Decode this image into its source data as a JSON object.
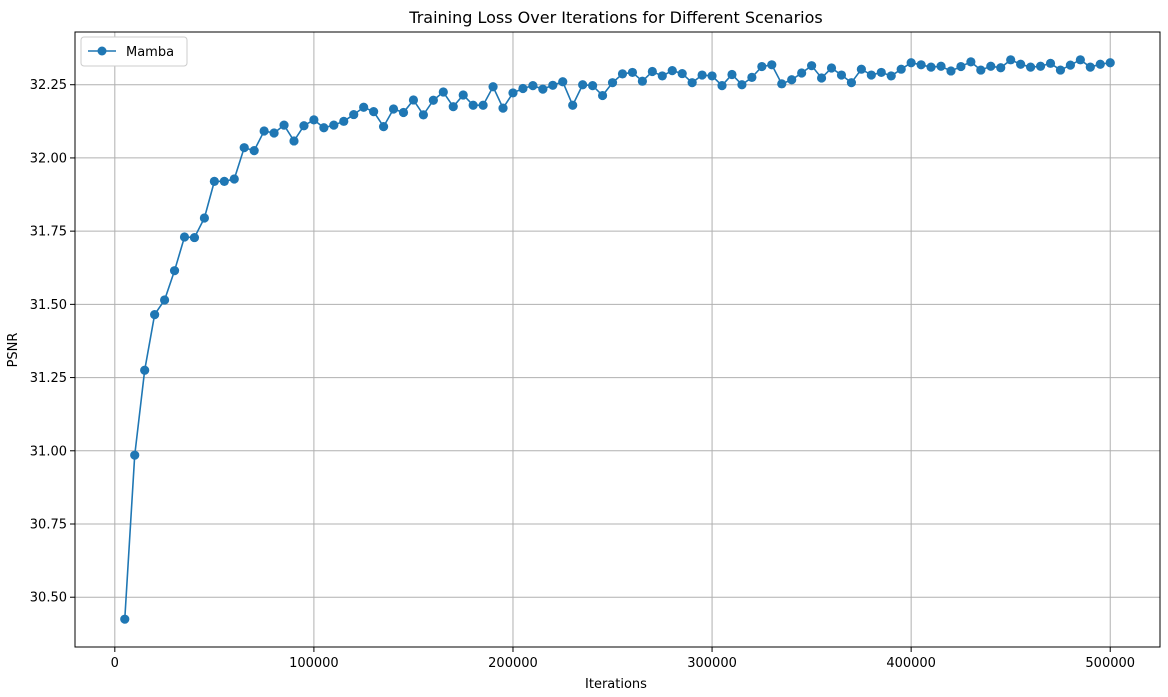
{
  "chart_data": {
    "type": "line",
    "title": "Training Loss Over Iterations for Different Scenarios",
    "xlabel": "Iterations",
    "ylabel": "PSNR",
    "xlim": [
      -20000,
      525000
    ],
    "ylim": [
      30.33,
      32.43
    ],
    "xticks": [
      0,
      100000,
      200000,
      300000,
      400000,
      500000
    ],
    "yticks": [
      30.5,
      30.75,
      31.0,
      31.25,
      31.5,
      31.75,
      32.0,
      32.25
    ],
    "xtick_labels": [
      "0",
      "100000",
      "200000",
      "300000",
      "400000",
      "500000"
    ],
    "ytick_labels": [
      "30.50",
      "30.75",
      "31.00",
      "31.25",
      "31.50",
      "31.75",
      "32.00",
      "32.25"
    ],
    "grid": true,
    "legend_position": "upper-left",
    "color": "#1f77b4",
    "x": [
      5000,
      10000,
      15000,
      20000,
      25000,
      30000,
      35000,
      40000,
      45000,
      50000,
      55000,
      60000,
      65000,
      70000,
      75000,
      80000,
      85000,
      90000,
      95000,
      100000,
      105000,
      110000,
      115000,
      120000,
      125000,
      130000,
      135000,
      140000,
      145000,
      150000,
      155000,
      160000,
      165000,
      170000,
      175000,
      180000,
      185000,
      190000,
      195000,
      200000,
      205000,
      210000,
      215000,
      220000,
      225000,
      230000,
      235000,
      240000,
      245000,
      250000,
      255000,
      260000,
      265000,
      270000,
      275000,
      280000,
      285000,
      290000,
      295000,
      300000,
      305000,
      310000,
      315000,
      320000,
      325000,
      330000,
      335000,
      340000,
      345000,
      350000,
      355000,
      360000,
      365000,
      370000,
      375000,
      380000,
      385000,
      390000,
      395000,
      400000,
      405000,
      410000,
      415000,
      420000,
      425000,
      430000,
      435000,
      440000,
      445000,
      450000,
      455000,
      460000,
      465000,
      470000,
      475000,
      480000,
      485000,
      490000,
      495000,
      500000
    ],
    "series": [
      {
        "name": "Mamba",
        "values": [
          30.425,
          30.985,
          31.275,
          31.465,
          31.515,
          31.615,
          31.73,
          31.728,
          31.795,
          31.92,
          31.92,
          31.928,
          32.035,
          32.025,
          32.092,
          32.085,
          32.112,
          32.058,
          32.11,
          32.13,
          32.103,
          32.112,
          32.125,
          32.148,
          32.173,
          32.158,
          32.107,
          32.167,
          32.155,
          32.198,
          32.147,
          32.197,
          32.225,
          32.175,
          32.215,
          32.18,
          32.18,
          32.243,
          32.17,
          32.222,
          32.237,
          32.247,
          32.235,
          32.248,
          32.26,
          32.18,
          32.25,
          32.247,
          32.213,
          32.257,
          32.287,
          32.292,
          32.262,
          32.295,
          32.28,
          32.298,
          32.288,
          32.257,
          32.283,
          32.28,
          32.247,
          32.285,
          32.25,
          32.275,
          32.312,
          32.318,
          32.253,
          32.267,
          32.29,
          32.315,
          32.273,
          32.307,
          32.283,
          32.257,
          32.303,
          32.283,
          32.292,
          32.28,
          32.303,
          32.325,
          32.318,
          32.31,
          32.313,
          32.297,
          32.312,
          32.328,
          32.3,
          32.313,
          32.308,
          32.335,
          32.32,
          32.31,
          32.313,
          32.323,
          32.3,
          32.317,
          32.335,
          32.31,
          32.32,
          32.325
        ]
      }
    ]
  }
}
